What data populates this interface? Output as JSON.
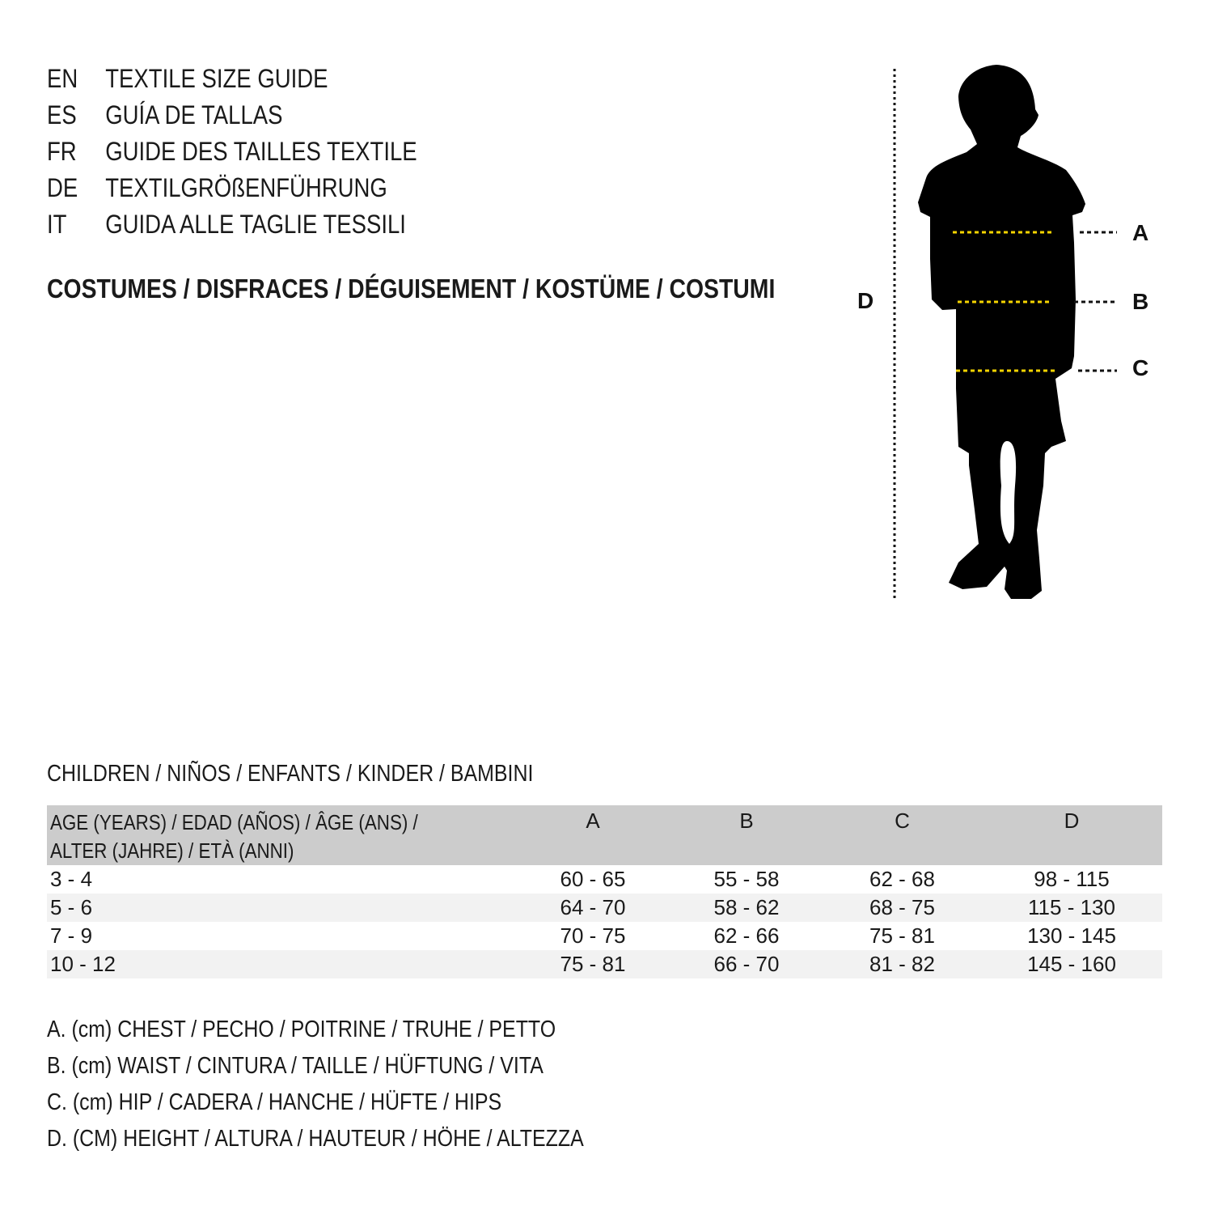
{
  "languages": [
    {
      "code": "EN",
      "title": "TEXTILE SIZE GUIDE"
    },
    {
      "code": "ES",
      "title": "GUÍA DE TALLAS"
    },
    {
      "code": "FR",
      "title": "GUIDE DES TAILLES TEXTILE"
    },
    {
      "code": "DE",
      "title": "TEXTILGRÖßENFÜHRUNG"
    },
    {
      "code": "IT",
      "title": "GUIDA ALLE TAGLIE TESSILI"
    }
  ],
  "category": "COSTUMES / DISFRACES / DÉGUISEMENT / KOSTÜME / COSTUMI",
  "figure": {
    "labels": {
      "a": "A",
      "b": "B",
      "c": "C",
      "d": "D"
    },
    "measure_line_color": "#f5d400",
    "silhouette": "child-silhouette-icon"
  },
  "section_title": "CHILDREN / NIÑOS / ENFANTS / KINDER / BAMBINI",
  "table": {
    "headers": {
      "age_line1": "AGE (YEARS) / EDAD (AÑOS) / ÂGE (ANS) /",
      "age_line2": "ALTER (JAHRE) / ETÀ (ANNI)",
      "a": "A",
      "b": "B",
      "c": "C",
      "d": "D"
    },
    "header_bg": "#cccccc",
    "rows": [
      {
        "age": "3 - 4",
        "a": "60 - 65",
        "b": "55 - 58",
        "c": "62 - 68",
        "d": "98 - 115"
      },
      {
        "age": "5 - 6",
        "a": "64 - 70",
        "b": "58 - 62",
        "c": "68 - 75",
        "d": "115 - 130"
      },
      {
        "age": "7 - 9",
        "a": "70 - 75",
        "b": "62 - 66",
        "c": "75 - 81",
        "d": "130 - 145"
      },
      {
        "age": "10 - 12",
        "a": "75 - 81",
        "b": "66 - 70",
        "c": "81 - 82",
        "d": "145 - 160"
      }
    ]
  },
  "legend": [
    "A. (cm) CHEST / PECHO / POITRINE / TRUHE / PETTO",
    "B. (cm) WAIST / CINTURA / TAILLE / HÜFTUNG / VITA",
    "C. (cm) HIP / CADERA / HANCHE / HÜFTE / HIPS",
    "D. (CM) HEIGHT / ALTURA / HAUTEUR / HÖHE / ALTEZZA"
  ]
}
